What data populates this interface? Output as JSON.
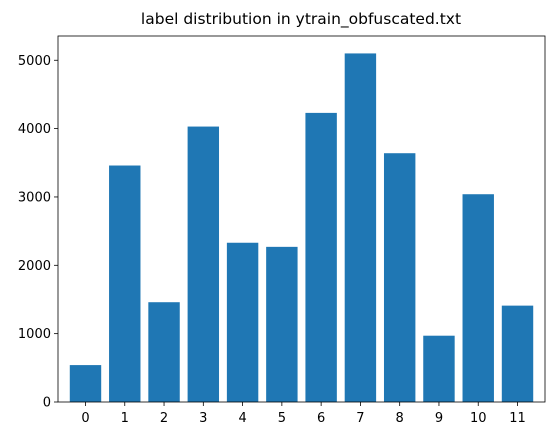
{
  "chart_data": {
    "type": "bar",
    "title": "label distribution in ytrain_obfuscated.txt",
    "xlabel": "",
    "ylabel": "",
    "categories": [
      "0",
      "1",
      "2",
      "3",
      "4",
      "5",
      "6",
      "7",
      "8",
      "9",
      "10",
      "11"
    ],
    "values": [
      540,
      3460,
      1460,
      4030,
      2330,
      2270,
      4230,
      5100,
      3640,
      970,
      3040,
      1410
    ],
    "ylim": [
      0,
      5355
    ],
    "yticks": [
      0,
      1000,
      2000,
      3000,
      4000,
      5000
    ],
    "bar_color": "#1f77b4",
    "grid": false,
    "legend": "none"
  }
}
